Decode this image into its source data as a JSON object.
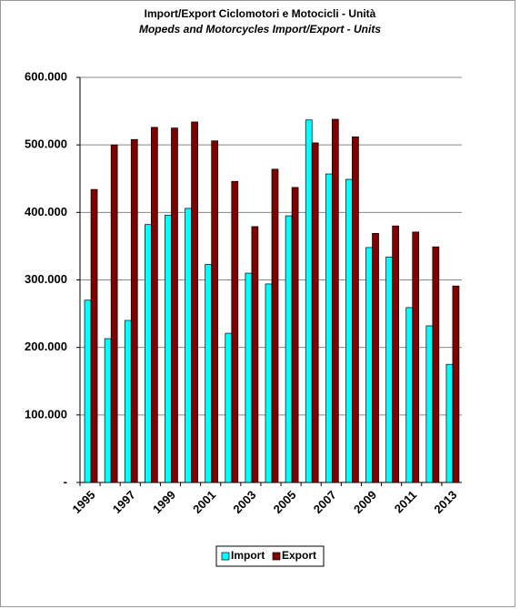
{
  "chart_data": {
    "type": "bar",
    "title": "Import/Export  Ciclomotori e Motocicli - Unità",
    "subtitle": "Mopeds and Motorcycles Import/Export - Units",
    "categories": [
      "1995",
      null,
      "1997",
      null,
      "1999",
      null,
      "2001",
      null,
      "2003",
      null,
      "2005",
      null,
      "2007",
      null,
      "2009",
      null,
      "2011",
      null,
      "2013"
    ],
    "series": [
      {
        "name": "Import",
        "color": "#00ffff",
        "values": [
          270000,
          213000,
          240000,
          382000,
          396000,
          406000,
          323000,
          221000,
          310000,
          294000,
          395000,
          537000,
          457000,
          449000,
          348000,
          334000,
          259000,
          232000,
          175000
        ]
      },
      {
        "name": "Export",
        "color": "#800000",
        "values": [
          434000,
          500000,
          508000,
          526000,
          525000,
          534000,
          506000,
          446000,
          379000,
          464000,
          437000,
          503000,
          538000,
          512000,
          369000,
          380000,
          371000,
          349000,
          291000
        ]
      }
    ],
    "ylim": [
      0,
      600000
    ],
    "yticks": [
      {
        "value": 0,
        "label": "-"
      },
      {
        "value": 100000,
        "label": "100.000"
      },
      {
        "value": 200000,
        "label": "200.000"
      },
      {
        "value": 300000,
        "label": "300.000"
      },
      {
        "value": 400000,
        "label": "400.000"
      },
      {
        "value": 500000,
        "label": "500.000"
      },
      {
        "value": 600000,
        "label": "600.000"
      }
    ],
    "grid": true,
    "legend": "bottom"
  }
}
